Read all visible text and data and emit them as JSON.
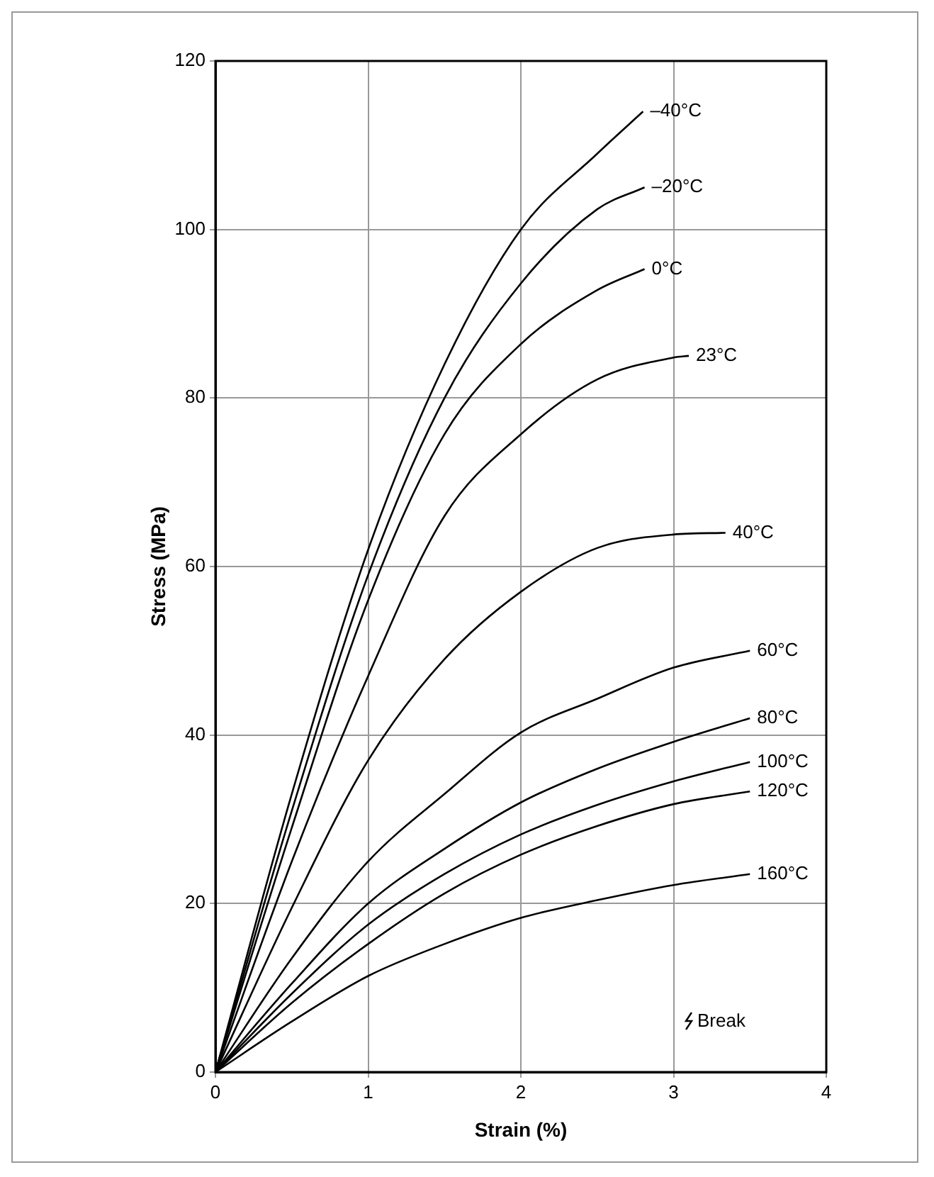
{
  "chart_data": {
    "type": "line",
    "xlabel": "Strain (%)",
    "ylabel": "Stress (MPa)",
    "xlim": [
      0,
      4
    ],
    "xticks": [
      0,
      1,
      2,
      3,
      4
    ],
    "ylim": [
      0,
      120
    ],
    "yticks": [
      0,
      20,
      40,
      60,
      80,
      100,
      120
    ],
    "grid": true,
    "legend": false,
    "marker": "none",
    "line_style": "solid",
    "annotations": [
      "Break"
    ],
    "series": [
      {
        "name": "–40°C",
        "color": "#000000",
        "x": [
          0,
          0.5,
          1,
          1.5,
          2,
          2.5,
          2.8
        ],
        "values": [
          0,
          33,
          62,
          84,
          100,
          109,
          114
        ]
      },
      {
        "name": "–20°C",
        "color": "#000000",
        "x": [
          0,
          0.5,
          1,
          1.5,
          2,
          2.5,
          2.81
        ],
        "values": [
          0,
          31,
          59,
          80,
          93.6,
          102.4,
          105
        ]
      },
      {
        "name": "0°C",
        "color": "#000000",
        "x": [
          0,
          0.5,
          1,
          1.5,
          2,
          2.5,
          2.81
        ],
        "values": [
          0,
          29,
          56,
          75.7,
          86.4,
          92.8,
          95.3
        ]
      },
      {
        "name": "23°C",
        "color": "#000000",
        "x": [
          0,
          0.5,
          1,
          1.5,
          2,
          2.5,
          3,
          3.1
        ],
        "values": [
          0,
          25,
          47,
          66,
          75.7,
          82.2,
          84.8,
          85
        ]
      },
      {
        "name": "40°C",
        "color": "#000000",
        "x": [
          0,
          0.5,
          1,
          1.5,
          2,
          2.5,
          3,
          3.34
        ],
        "values": [
          0,
          19.5,
          37,
          49,
          57,
          62.2,
          63.8,
          64
        ]
      },
      {
        "name": "60°C",
        "color": "#000000",
        "x": [
          0,
          0.5,
          1,
          1.5,
          2,
          2.5,
          3,
          3.5
        ],
        "values": [
          0,
          13.5,
          25,
          33,
          40.3,
          44.3,
          48,
          50
        ]
      },
      {
        "name": "80°C",
        "color": "#000000",
        "x": [
          0,
          0.5,
          1,
          1.5,
          2,
          2.5,
          3,
          3.5
        ],
        "values": [
          0,
          10.5,
          20,
          26.5,
          32,
          36,
          39.2,
          42
        ]
      },
      {
        "name": "100°C",
        "color": "#000000",
        "x": [
          0,
          0.5,
          1,
          1.5,
          2,
          2.5,
          3,
          3.5
        ],
        "values": [
          0,
          9.3,
          17.5,
          23.5,
          28.2,
          31.7,
          34.5,
          36.8
        ]
      },
      {
        "name": "120°C",
        "color": "#000000",
        "x": [
          0,
          0.5,
          1,
          1.5,
          2,
          2.5,
          3,
          3.5
        ],
        "values": [
          0,
          8.2,
          15.2,
          21.2,
          25.8,
          29.2,
          31.8,
          33.3
        ]
      },
      {
        "name": "160°C",
        "color": "#000000",
        "x": [
          0,
          0.5,
          1,
          1.5,
          2,
          2.5,
          3,
          3.5
        ],
        "values": [
          0,
          6,
          11.4,
          15.2,
          18.3,
          20.4,
          22.2,
          23.5
        ]
      }
    ]
  }
}
